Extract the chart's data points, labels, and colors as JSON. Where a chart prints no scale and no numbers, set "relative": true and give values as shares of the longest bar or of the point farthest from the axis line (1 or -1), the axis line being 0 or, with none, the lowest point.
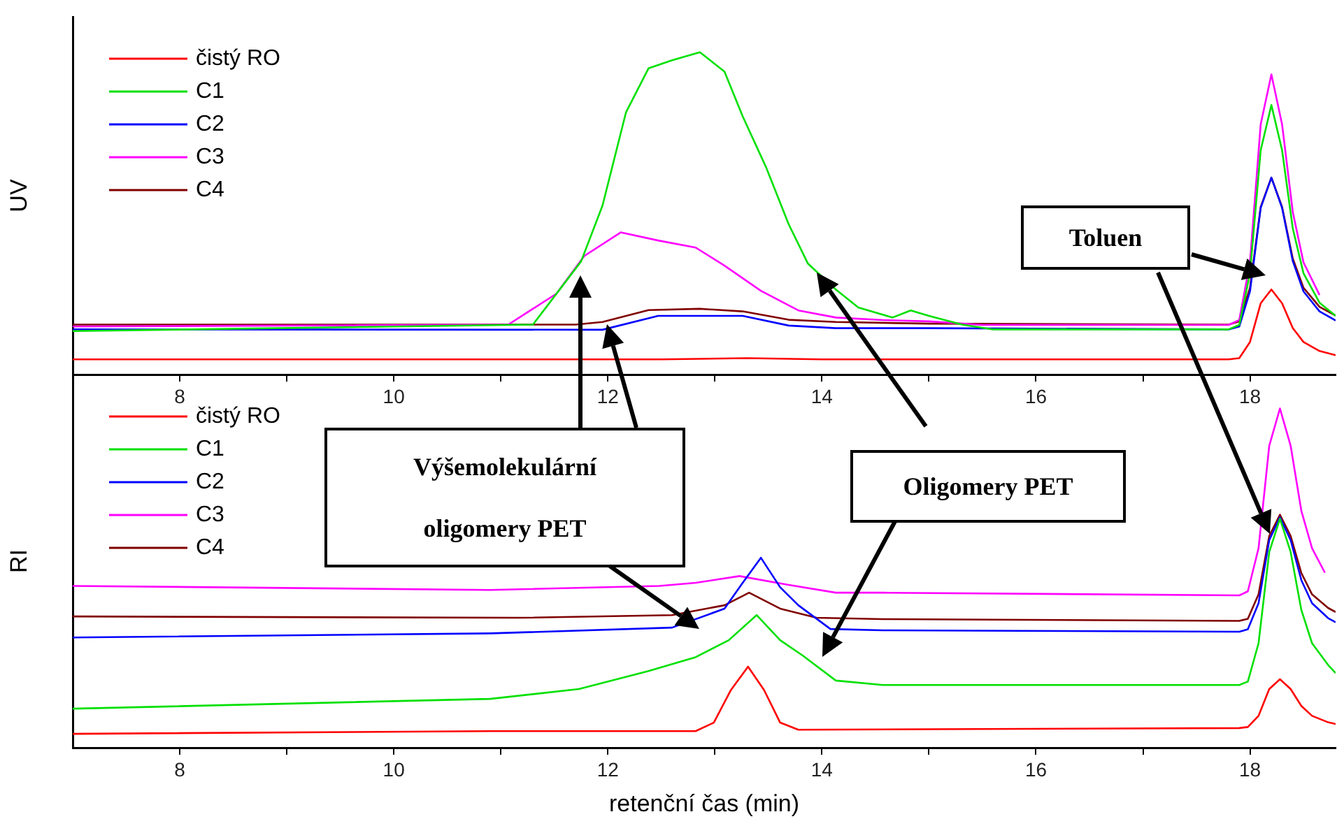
{
  "chart_data": [
    {
      "type": "line",
      "relative": true,
      "ylabel": "UV",
      "xlim": [
        7,
        18.8
      ],
      "xticks": [
        8,
        {
          "value": 9,
          "label": null
        },
        10,
        {
          "value": 11,
          "label": null
        },
        12,
        {
          "value": 13,
          "label": null
        },
        14,
        {
          "value": 15,
          "label": null
        },
        16,
        {
          "value": 17,
          "label": null
        },
        18
      ],
      "legend": "top left",
      "annotations": [
        "Toluen"
      ],
      "series": [
        {
          "name": "čistý RO",
          "color": "#ff0000",
          "x": [
            7,
            11,
            12.5,
            13.3,
            14,
            17.8,
            17.9,
            18.0,
            18.1,
            18.2,
            18.3,
            18.4,
            18.5,
            18.65,
            18.8
          ],
          "values": [
            0.047,
            0.047,
            0.047,
            0.051,
            0.047,
            0.047,
            0.051,
            0.101,
            0.221,
            0.264,
            0.221,
            0.144,
            0.101,
            0.073,
            0.06
          ]
        },
        {
          "name": "C1",
          "color": "#00e000",
          "x": [
            7,
            11.3,
            11.75,
            11.95,
            12.17,
            12.38,
            12.6,
            12.86,
            13.09,
            13.26,
            13.48,
            13.69,
            13.87,
            14.13,
            14.34,
            14.66,
            14.83,
            15.0,
            15.31,
            15.6,
            17.8,
            17.9,
            18.0,
            18.1,
            18.2,
            18.3,
            18.4,
            18.5,
            18.65,
            18.8
          ],
          "values": [
            0.135,
            0.155,
            0.351,
            0.524,
            0.814,
            0.95,
            0.975,
            1.0,
            0.94,
            0.801,
            0.642,
            0.466,
            0.344,
            0.264,
            0.208,
            0.177,
            0.199,
            0.182,
            0.155,
            0.14,
            0.14,
            0.154,
            0.314,
            0.696,
            0.836,
            0.696,
            0.453,
            0.314,
            0.223,
            0.182
          ]
        },
        {
          "name": "C2",
          "color": "#0000ff",
          "x": [
            7,
            11.95,
            12.47,
            13.26,
            13.69,
            14.13,
            15,
            17.8,
            17.9,
            18.0,
            18.1,
            18.2,
            18.3,
            18.4,
            18.5,
            18.65,
            18.8
          ],
          "values": [
            0.14,
            0.139,
            0.182,
            0.182,
            0.152,
            0.144,
            0.144,
            0.14,
            0.149,
            0.258,
            0.517,
            0.611,
            0.517,
            0.352,
            0.258,
            0.196,
            0.168
          ]
        },
        {
          "name": "C3",
          "color": "#ff00ff",
          "x": [
            7,
            11.07,
            11.52,
            11.78,
            12.12,
            12.47,
            12.82,
            13.09,
            13.43,
            13.78,
            14.13,
            14.57,
            15.0,
            15.5,
            17.8,
            17.9,
            18.0,
            18.1,
            18.2,
            18.3,
            18.4,
            18.5,
            18.65
          ],
          "values": [
            0.149,
            0.155,
            0.251,
            0.368,
            0.441,
            0.416,
            0.394,
            0.338,
            0.26,
            0.199,
            0.177,
            0.169,
            0.165,
            0.154,
            0.154,
            0.169,
            0.348,
            0.776,
            0.931,
            0.776,
            0.504,
            0.348,
            0.247
          ]
        },
        {
          "name": "C4",
          "color": "#800000",
          "x": [
            7,
            11.7,
            11.95,
            12.38,
            12.86,
            13.26,
            13.69,
            14.13,
            15,
            17.8,
            17.9,
            18.0,
            18.1,
            18.2,
            18.3,
            18.4,
            18.5,
            18.65,
            18.8
          ],
          "values": [
            0.155,
            0.155,
            0.163,
            0.2,
            0.204,
            0.196,
            0.17,
            0.163,
            0.158,
            0.155,
            0.165,
            0.269,
            0.52,
            0.611,
            0.52,
            0.36,
            0.269,
            0.21,
            0.183
          ]
        }
      ]
    },
    {
      "type": "line",
      "relative": true,
      "ylabel": "RI",
      "xlabel": "retenční čas (min)",
      "xlim": [
        7,
        18.8
      ],
      "xticks": [
        8,
        {
          "value": 9,
          "label": null
        },
        10,
        {
          "value": 11,
          "label": null
        },
        12,
        {
          "value": 13,
          "label": null
        },
        14,
        {
          "value": 15,
          "label": null
        },
        16,
        {
          "value": 17,
          "label": null
        },
        18
      ],
      "legend": "top left",
      "annotations": [
        "Výšemolekulární oligomery PET",
        "Oligomery PET"
      ],
      "series": [
        {
          "name": "čistý RO",
          "color": "#ff0000",
          "x": [
            7,
            10.9,
            12.82,
            12.99,
            13.15,
            13.31,
            13.46,
            13.61,
            13.78,
            17.9,
            17.98,
            18.08,
            18.18,
            18.28,
            18.38,
            18.48,
            18.58,
            18.73,
            18.8
          ],
          "values": [
            0.041,
            0.049,
            0.049,
            0.074,
            0.17,
            0.239,
            0.17,
            0.074,
            0.053,
            0.058,
            0.061,
            0.094,
            0.173,
            0.202,
            0.173,
            0.123,
            0.094,
            0.075,
            0.07
          ]
        },
        {
          "name": "C1",
          "color": "#00e000",
          "x": [
            7,
            10.9,
            11.73,
            12.38,
            12.82,
            13.13,
            13.39,
            13.61,
            13.82,
            14.13,
            14.57,
            17.9,
            17.98,
            18.08,
            18.18,
            18.28,
            18.38,
            18.48,
            18.58,
            18.73,
            18.8
          ],
          "values": [
            0.115,
            0.144,
            0.173,
            0.226,
            0.267,
            0.317,
            0.391,
            0.317,
            0.272,
            0.198,
            0.185,
            0.185,
            0.195,
            0.308,
            0.577,
            0.675,
            0.577,
            0.406,
            0.308,
            0.244,
            0.22
          ]
        },
        {
          "name": "C2",
          "color": "#0000ff",
          "x": [
            7,
            10.9,
            12.6,
            13.09,
            13.26,
            13.43,
            13.61,
            13.78,
            14.08,
            14.57,
            17.9,
            17.98,
            18.08,
            18.18,
            18.28,
            18.38,
            18.48,
            18.58,
            18.73,
            18.8
          ],
          "values": [
            0.325,
            0.337,
            0.354,
            0.41,
            0.486,
            0.56,
            0.473,
            0.42,
            0.35,
            0.346,
            0.342,
            0.349,
            0.426,
            0.612,
            0.679,
            0.612,
            0.494,
            0.426,
            0.382,
            0.37
          ]
        },
        {
          "name": "C3",
          "color": "#ff00ff",
          "x": [
            7,
            10.9,
            12.48,
            12.82,
            13.23,
            13.69,
            14.13,
            14.57,
            17.9,
            17.98,
            18.08,
            18.18,
            18.28,
            18.38,
            18.48,
            18.58,
            18.7
          ],
          "values": [
            0.477,
            0.465,
            0.477,
            0.486,
            0.506,
            0.48,
            0.457,
            0.457,
            0.449,
            0.461,
            0.588,
            0.89,
            1.0,
            0.89,
            0.698,
            0.588,
            0.516
          ]
        },
        {
          "name": "C4",
          "color": "#800000",
          "x": [
            7,
            11.17,
            12.6,
            13.09,
            13.32,
            13.61,
            13.95,
            14.57,
            17.9,
            17.98,
            18.08,
            18.18,
            18.28,
            18.38,
            18.48,
            18.58,
            18.73,
            18.8
          ],
          "values": [
            0.387,
            0.383,
            0.391,
            0.42,
            0.457,
            0.41,
            0.383,
            0.379,
            0.374,
            0.38,
            0.452,
            0.624,
            0.687,
            0.624,
            0.515,
            0.452,
            0.412,
            0.4
          ]
        }
      ]
    }
  ]
}
